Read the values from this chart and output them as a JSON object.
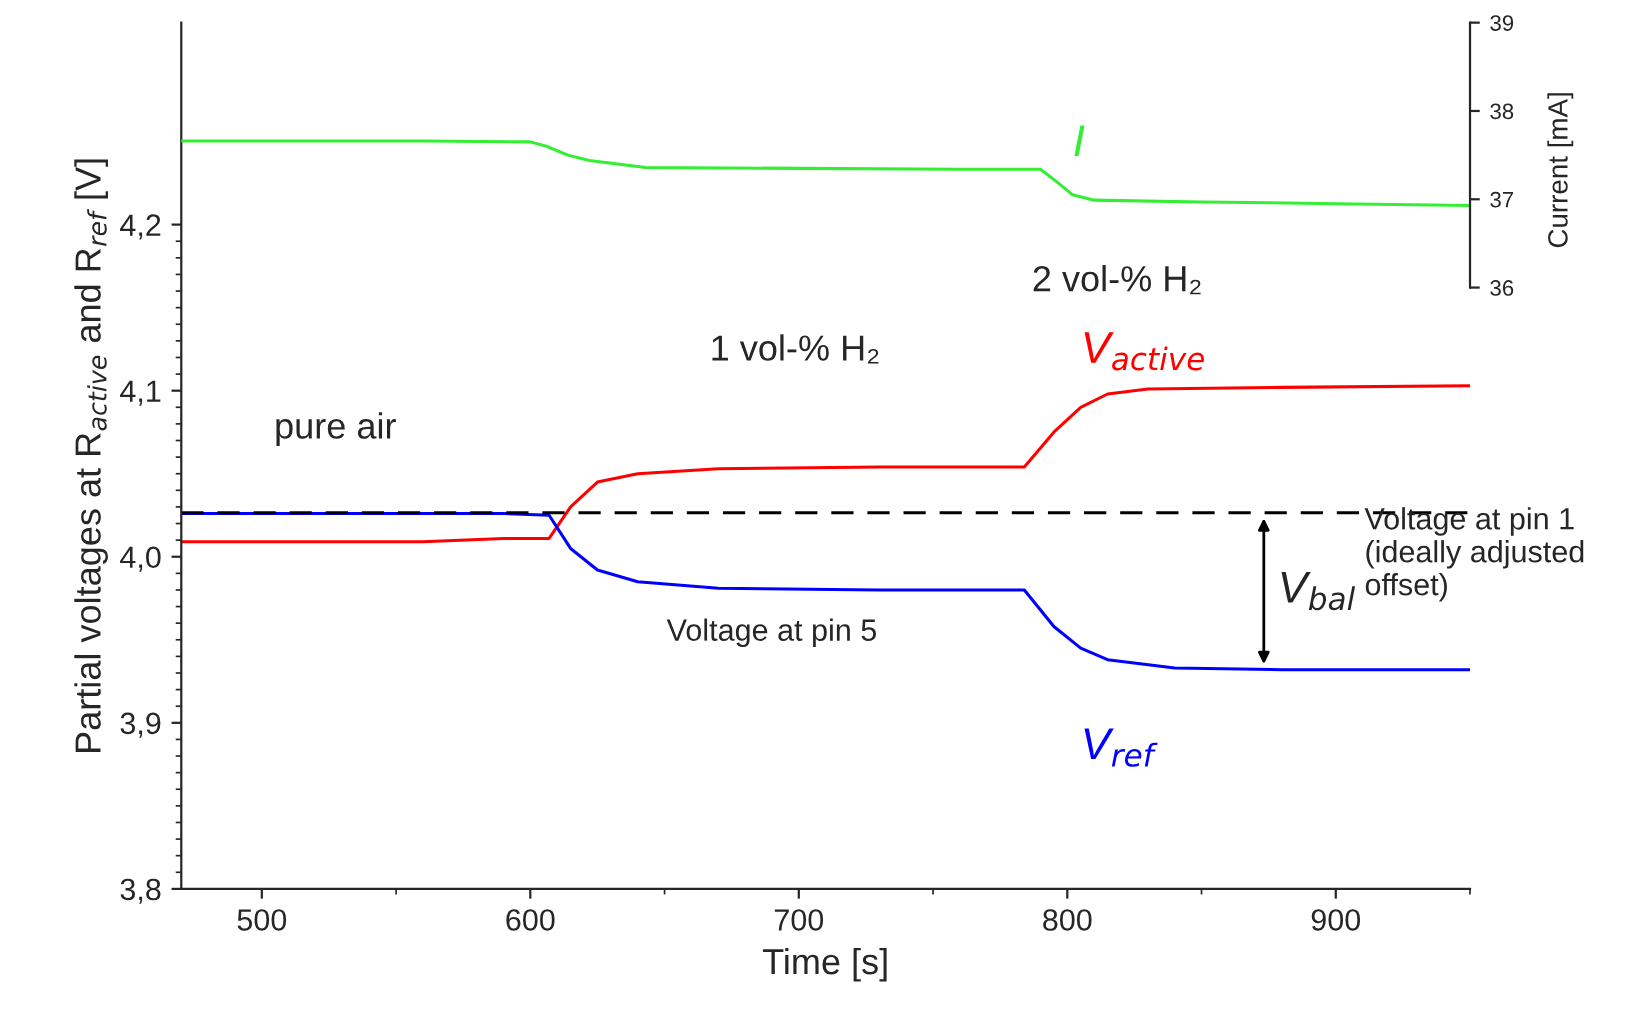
{
  "chart_data": {
    "type": "line",
    "xlabel": "Time [s]",
    "ylabel": "Partial voltages at R$_{active}$ and R$_{ref}$ [V]",
    "y2label": "Current [mA]",
    "xlim": [
      470,
      950
    ],
    "xticks": [
      500,
      600,
      700,
      800,
      900
    ],
    "ylim": [
      3.8,
      4.3216
    ],
    "yticks": [
      {
        "value": 3.8,
        "label": "3,8"
      },
      {
        "value": 3.9,
        "label": "3,9"
      },
      {
        "value": 4.0,
        "label": "4,0"
      },
      {
        "value": 4.1,
        "label": "4,1"
      },
      {
        "value": 4.2,
        "label": "4,2"
      }
    ],
    "y2lim": [
      29.19,
      39
    ],
    "y2ticks": [
      36,
      37,
      38,
      39
    ],
    "series": [
      {
        "name": "V$_{active}$",
        "color": "#ff0000",
        "x": [
          470,
          520,
          560,
          590,
          607,
          615,
          625,
          640,
          670,
          730,
          784,
          795,
          805,
          815,
          830,
          880,
          950
        ],
        "values": [
          4.009,
          4.009,
          4.009,
          4.011,
          4.011,
          4.03,
          4.045,
          4.05,
          4.053,
          4.054,
          4.054,
          4.075,
          4.09,
          4.098,
          4.101,
          4.102,
          4.103
        ]
      },
      {
        "name": "V$_{ref}$",
        "color": "#0000ff",
        "x": [
          470,
          520,
          560,
          590,
          607,
          615,
          625,
          640,
          670,
          730,
          784,
          795,
          805,
          815,
          840,
          880,
          950
        ],
        "values": [
          4.026,
          4.026,
          4.026,
          4.026,
          4.025,
          4.005,
          3.992,
          3.985,
          3.981,
          3.98,
          3.98,
          3.958,
          3.945,
          3.938,
          3.933,
          3.932,
          3.932
        ]
      },
      {
        "name": "I",
        "color": "#33ee33",
        "axis": "y2",
        "x": [
          470,
          520,
          560,
          600,
          606,
          614,
          622,
          643,
          700,
          760,
          790,
          796,
          802,
          810,
          850,
          900,
          950
        ],
        "values": [
          37.66,
          37.66,
          37.66,
          37.65,
          37.6,
          37.5,
          37.44,
          37.36,
          37.35,
          37.34,
          37.34,
          37.2,
          37.05,
          36.99,
          36.97,
          36.95,
          36.93
        ]
      }
    ],
    "ref_lines": [
      {
        "axis": "y",
        "value": 4.0265,
        "label": "Voltage at pin 1\n(ideally adjusted\noffset)",
        "color": "#000000",
        "line_style": "dashed"
      }
    ],
    "annotations": [
      "pure air",
      "1 vol-% H₂",
      "2 vol-% H₂",
      {
        "text": "Voltage at pin 5",
        "x": 690,
        "y": 3.981
      },
      "V$_{bal}$"
    ]
  }
}
